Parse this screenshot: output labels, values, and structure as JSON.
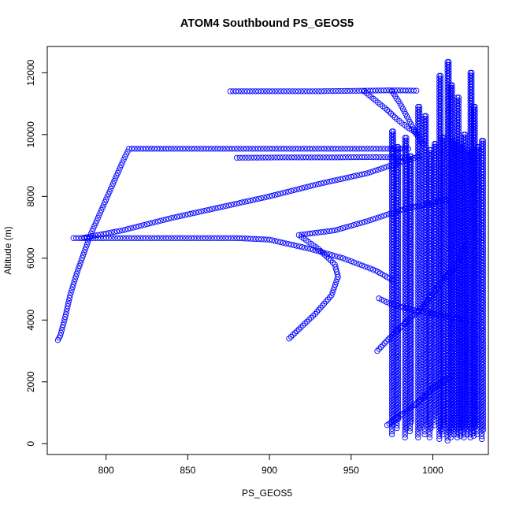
{
  "chart_data": {
    "type": "scatter",
    "title": "ATOM4 Southbound PS_GEOS5",
    "xlabel": "PS_GEOS5",
    "ylabel": "Altitude (m)",
    "xlim": [
      764,
      1034
    ],
    "ylim": [
      -350,
      12850
    ],
    "xticks": [
      800,
      850,
      900,
      950,
      1000
    ],
    "yticks": [
      0,
      2000,
      4000,
      6000,
      8000,
      10000,
      12000
    ],
    "marker": "open-circle",
    "color": "#0000ff",
    "grid": false,
    "legend": "none",
    "series": [
      {
        "segments": [
          [
            [
              770.5,
              3350
            ],
            [
              772,
              3500
            ],
            [
              775,
              4100
            ],
            [
              778,
              4800
            ],
            [
              782,
              5500
            ],
            [
              786,
              6100
            ],
            [
              790,
              6700
            ],
            [
              795,
              7300
            ],
            [
              800,
              7900
            ],
            [
              805,
              8500
            ],
            [
              810,
              9100
            ],
            [
              814,
              9540
            ],
            [
              840,
              9540
            ],
            [
              870,
              9540
            ],
            [
              900,
              9540
            ],
            [
              930,
              9540
            ],
            [
              960,
              9540
            ],
            [
              985,
              9540
            ]
          ],
          [
            [
              876,
              11400
            ],
            [
              900,
              11400
            ],
            [
              930,
              11400
            ],
            [
              960,
              11420
            ],
            [
              975,
              11430
            ],
            [
              990,
              11420
            ]
          ],
          [
            [
              958,
              11400
            ],
            [
              965,
              11100
            ],
            [
              972,
              10800
            ],
            [
              978,
              10500
            ],
            [
              984,
              10250
            ],
            [
              990,
              10050
            ]
          ],
          [
            [
              975,
              11400
            ],
            [
              980,
              11000
            ],
            [
              985,
              10500
            ],
            [
              990,
              10000
            ],
            [
              994,
              9700
            ]
          ],
          [
            [
              880,
              9250
            ],
            [
              910,
              9260
            ],
            [
              940,
              9260
            ],
            [
              960,
              9270
            ],
            [
              985,
              9260
            ]
          ],
          [
            [
              780,
              6650
            ],
            [
              800,
              6650
            ],
            [
              840,
              6650
            ],
            [
              880,
              6650
            ],
            [
              900,
              6600
            ],
            [
              925,
              6300
            ],
            [
              945,
              6000
            ],
            [
              965,
              5600
            ],
            [
              975,
              5300
            ]
          ],
          [
            [
              785,
              6650
            ],
            [
              810,
              6900
            ],
            [
              840,
              7300
            ],
            [
              870,
              7650
            ],
            [
              900,
              8000
            ],
            [
              930,
              8400
            ],
            [
              960,
              8750
            ],
            [
              980,
              9100
            ],
            [
              992,
              9300
            ]
          ],
          [
            [
              912,
              3400
            ],
            [
              918,
              3700
            ],
            [
              928,
              4200
            ],
            [
              938,
              4800
            ],
            [
              942,
              5400
            ],
            [
              940,
              5800
            ],
            [
              930,
              6300
            ],
            [
              918,
              6750
            ],
            [
              940,
              6900
            ],
            [
              960,
              7200
            ],
            [
              980,
              7550
            ],
            [
              1000,
              7800
            ],
            [
              1010,
              7900
            ]
          ],
          [
            [
              967,
              4700
            ],
            [
              975,
              4500
            ],
            [
              990,
              4300
            ],
            [
              1005,
              4150
            ],
            [
              1020,
              4000
            ]
          ],
          [
            [
              966,
              3000
            ],
            [
              975,
              3500
            ],
            [
              985,
              4000
            ],
            [
              995,
              4500
            ],
            [
              1005,
              5200
            ],
            [
              1015,
              5800
            ],
            [
              1020,
              6400
            ]
          ],
          [
            [
              972,
              600
            ],
            [
              980,
              900
            ],
            [
              990,
              1300
            ],
            [
              1000,
              1800
            ],
            [
              1012,
              2200
            ]
          ]
        ]
      },
      {
        "columns": [
          [
            975,
            300,
            10100
          ],
          [
            978,
            500,
            9600
          ],
          [
            983,
            200,
            9900
          ],
          [
            986,
            400,
            9300
          ],
          [
            991,
            200,
            10900
          ],
          [
            995,
            300,
            10600
          ],
          [
            998,
            200,
            9500
          ],
          [
            1001,
            600,
            9700
          ],
          [
            1004,
            150,
            11900
          ],
          [
            1006,
            300,
            9900
          ],
          [
            1009,
            100,
            12350
          ],
          [
            1011,
            200,
            11600
          ],
          [
            1013,
            300,
            9800
          ],
          [
            1015,
            200,
            11200
          ],
          [
            1017,
            250,
            9700
          ],
          [
            1019,
            200,
            10000
          ],
          [
            1021,
            300,
            9500
          ],
          [
            1023,
            200,
            12000
          ],
          [
            1025,
            250,
            10900
          ],
          [
            1027,
            300,
            9600
          ],
          [
            1030,
            150,
            9800
          ]
        ]
      }
    ]
  }
}
